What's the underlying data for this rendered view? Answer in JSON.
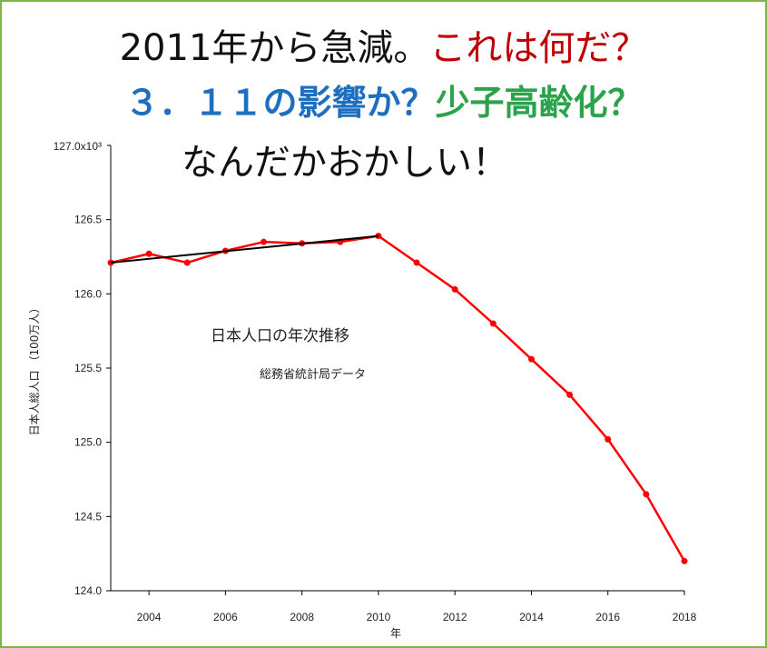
{
  "headline": {
    "line1": {
      "part1": "2011年から急減。",
      "part2": "これは何だ？"
    },
    "line2": {
      "part1": "３．１１の影響か？",
      "part2": "少子高齢化？"
    },
    "line3": "なんだかおかしい！"
  },
  "colors": {
    "frame_border": "#7fb542",
    "headline_black": "#111111",
    "headline_red": "#c00000",
    "headline_blue": "#1f6fc0",
    "headline_green": "#2aa34a",
    "series_red": "#ff0000",
    "trend_black": "#000000"
  },
  "chart_data": {
    "type": "line",
    "title": "日本人口の年次推移",
    "subtitle": "総務省統計局データ",
    "xlabel": "年",
    "ylabel": "日本人総人口 （100万人）",
    "y_max_label": "127.0x10³",
    "xlim": [
      2003,
      2018
    ],
    "ylim": [
      124.0,
      127.0
    ],
    "x_ticks": [
      2004,
      2006,
      2008,
      2010,
      2012,
      2014,
      2016,
      2018
    ],
    "y_ticks": [
      124.0,
      124.5,
      125.0,
      125.5,
      126.0,
      126.5
    ],
    "grid": false,
    "series": [
      {
        "x": [
          2003,
          2004,
          2005,
          2006,
          2007,
          2008,
          2009,
          2010,
          2011,
          2012,
          2013,
          2014,
          2015,
          2016,
          2017,
          2018
        ],
        "values": [
          126.21,
          126.27,
          126.21,
          126.29,
          126.35,
          126.34,
          126.35,
          126.39,
          126.21,
          126.03,
          125.8,
          125.56,
          125.32,
          125.02,
          124.65,
          124.2
        ],
        "color": "#ff0000"
      },
      {
        "x": [
          2003,
          2010
        ],
        "values": [
          126.21,
          126.39
        ],
        "color": "#000000"
      }
    ]
  }
}
